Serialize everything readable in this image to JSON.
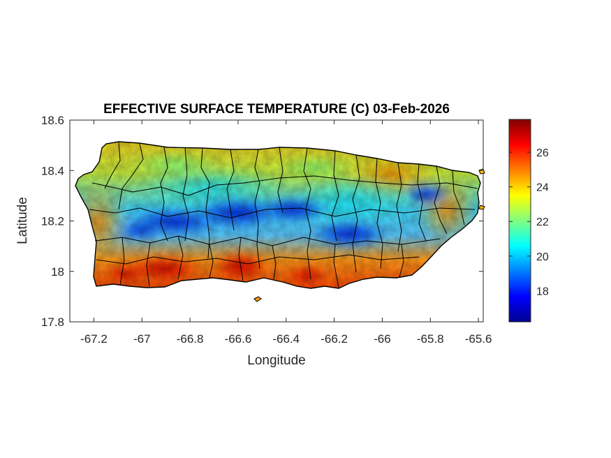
{
  "map": {
    "title": "EFFECTIVE SURFACE TEMPERATURE (C) 03-Feb-2026",
    "xlabel": "Longitude",
    "ylabel": "Latitude",
    "xlim": [
      -67.3,
      -65.58
    ],
    "ylim": [
      17.8,
      18.6
    ],
    "xticks": [
      -67.2,
      -67,
      -66.8,
      -66.6,
      -66.4,
      -66.2,
      -66,
      -65.8,
      -65.6
    ],
    "xtick_labels": [
      "-67.2",
      "-67",
      "-66.8",
      "-66.6",
      "-66.4",
      "-66.2",
      "-66",
      "-65.8",
      "-65.6"
    ],
    "yticks": [
      17.8,
      18,
      18.2,
      18.4,
      18.6
    ],
    "ytick_labels": [
      "17.8",
      "18",
      "18.2",
      "18.4",
      "18.6"
    ],
    "colorbar": {
      "range": [
        16.2,
        27.9
      ],
      "ticks": [
        18,
        20,
        22,
        24,
        26
      ],
      "tick_labels": [
        "18",
        "20",
        "22",
        "24",
        "26"
      ],
      "colormap": "jet"
    },
    "colors": {
      "border": "#000000",
      "axis": "#262626",
      "cold": "#00008f",
      "warm": "#800000"
    }
  }
}
